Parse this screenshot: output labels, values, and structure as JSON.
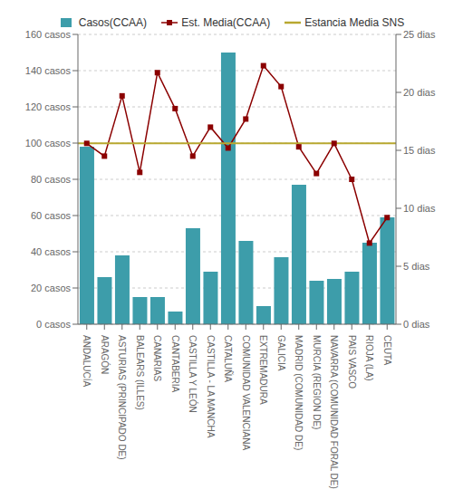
{
  "chart_data": {
    "type": "bar",
    "categories": [
      "ANDALUCÍA",
      "ARAGÓN",
      "ASTURIAS (PRINCIPADO DE)",
      "BALEARS (ILLES)",
      "CANARIAS",
      "CANTABERIA",
      "CASTILLA Y LEÓN",
      "CASTILLA - LA MANCHA",
      "CATALUÑA",
      "COMUNIDAD VALENCIANA",
      "EXTREMADURA",
      "GALICIA",
      "MADRID (COMUNIDAD DE)",
      "MURCIA (REGION DE)",
      "NAVARRA (COMUNIDAD FORAL DE)",
      "PAIS VASCO",
      "RIOJA (LA)",
      "CEUTA"
    ],
    "series": [
      {
        "name": "Casos(CCAA)",
        "type": "bar",
        "color": "#3d9daa",
        "values": [
          98,
          26,
          38,
          15,
          15,
          7,
          53,
          29,
          150,
          46,
          10,
          37,
          77,
          24,
          25,
          29,
          45,
          59
        ]
      },
      {
        "name": "Est.  Media(CCAA)",
        "type": "line",
        "axis": "y2",
        "color": "#8b0000",
        "marker": "square",
        "line_style": "solid",
        "values": [
          15.6,
          14.5,
          19.7,
          13.1,
          21.7,
          18.6,
          14.5,
          17.0,
          15.2,
          17.7,
          22.3,
          20.5,
          15.3,
          13.0,
          15.6,
          12.5,
          7.0,
          9.2
        ]
      },
      {
        "name": "Estancia Media SNS",
        "type": "hline",
        "axis": "y2",
        "color": "#b8a830",
        "value": 15.6
      }
    ],
    "ylim": [
      0,
      160
    ],
    "yticks": [
      {
        "value": 0,
        "label": "0 casos"
      },
      {
        "value": 20,
        "label": "20 casos"
      },
      {
        "value": 40,
        "label": "40 casos"
      },
      {
        "value": 60,
        "label": "60 casos"
      },
      {
        "value": 80,
        "label": "80 casos"
      },
      {
        "value": 100,
        "label": "100 casos"
      },
      {
        "value": 120,
        "label": "120 casos"
      },
      {
        "value": 140,
        "label": "140 casos"
      },
      {
        "value": 160,
        "label": "160 casos"
      }
    ],
    "y2lim": [
      0,
      25
    ],
    "y2ticks": [
      {
        "value": 0,
        "label": "0 dias"
      },
      {
        "value": 5,
        "label": "5 dias"
      },
      {
        "value": 10,
        "label": "10 dias"
      },
      {
        "value": 15,
        "label": "15 dias"
      },
      {
        "value": 20,
        "label": "20 dias"
      },
      {
        "value": 25,
        "label": "25 dias"
      }
    ],
    "grid": true,
    "legend": "top"
  }
}
